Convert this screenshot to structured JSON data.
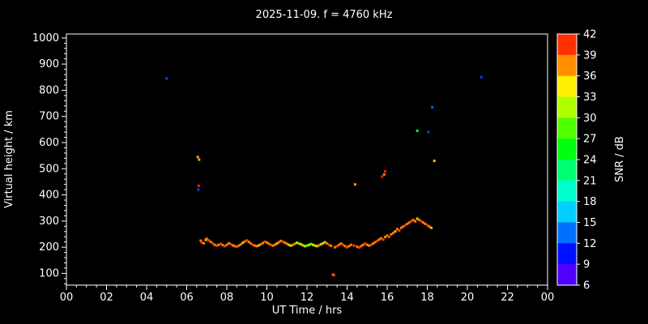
{
  "page": {
    "title": "2025-11-09. f = 4760 kHz"
  },
  "chart_data": {
    "type": "scatter",
    "title": "2025-11-09. f = 4760 kHz",
    "xlabel": "UT Time / hrs",
    "ylabel": "Virtual height / km",
    "colorbar_label": "SNR / dB",
    "xlim": [
      0,
      24
    ],
    "ylim": [
      55,
      1015
    ],
    "x_tick_values": [
      0,
      2,
      4,
      6,
      8,
      10,
      12,
      14,
      16,
      18,
      20,
      22,
      24
    ],
    "x_tick_labels": [
      "00",
      "02",
      "04",
      "06",
      "08",
      "10",
      "12",
      "14",
      "16",
      "18",
      "20",
      "22",
      "00"
    ],
    "x_minor_step": 0.5,
    "y_tick_values": [
      100,
      200,
      300,
      400,
      500,
      600,
      700,
      800,
      900,
      1000
    ],
    "y_minor_step": 20,
    "background_color": "#000000",
    "axis_color": "#ffffff",
    "legend_position": "right-colorbar",
    "grid": false,
    "colorbar": {
      "min": 6,
      "max": 42,
      "ticks": [
        6,
        9,
        12,
        15,
        18,
        21,
        24,
        27,
        30,
        33,
        36,
        39,
        42
      ],
      "segments": 12
    },
    "points_format": [
      "ut_hours",
      "virtual_height_km",
      "snr_db"
    ],
    "points": [
      [
        5.0,
        845,
        12
      ],
      [
        6.55,
        545,
        37
      ],
      [
        6.62,
        535,
        37
      ],
      [
        6.6,
        435,
        41
      ],
      [
        6.58,
        420,
        12
      ],
      [
        6.7,
        225,
        38
      ],
      [
        6.75,
        218,
        40
      ],
      [
        6.85,
        215,
        38
      ],
      [
        6.95,
        228,
        36
      ],
      [
        7.0,
        232,
        38
      ],
      [
        7.1,
        226,
        40
      ],
      [
        7.2,
        220,
        38
      ],
      [
        7.3,
        214,
        40
      ],
      [
        7.4,
        209,
        38
      ],
      [
        7.5,
        206,
        40
      ],
      [
        7.6,
        209,
        38
      ],
      [
        7.7,
        213,
        40
      ],
      [
        7.8,
        208,
        38
      ],
      [
        7.9,
        204,
        40
      ],
      [
        8.0,
        209,
        38
      ],
      [
        8.1,
        215,
        38
      ],
      [
        8.2,
        212,
        40
      ],
      [
        8.3,
        207,
        38
      ],
      [
        8.4,
        204,
        38
      ],
      [
        8.5,
        202,
        40
      ],
      [
        8.6,
        206,
        38
      ],
      [
        8.7,
        211,
        38
      ],
      [
        8.8,
        217,
        36
      ],
      [
        8.9,
        222,
        38
      ],
      [
        9.0,
        226,
        40
      ],
      [
        9.1,
        220,
        38
      ],
      [
        9.2,
        214,
        38
      ],
      [
        9.3,
        209,
        40
      ],
      [
        9.4,
        206,
        38
      ],
      [
        9.5,
        204,
        38
      ],
      [
        9.6,
        207,
        36
      ],
      [
        9.7,
        211,
        38
      ],
      [
        9.8,
        216,
        38
      ],
      [
        9.9,
        221,
        40
      ],
      [
        10.0,
        218,
        38
      ],
      [
        10.1,
        213,
        38
      ],
      [
        10.2,
        209,
        40
      ],
      [
        10.3,
        206,
        38
      ],
      [
        10.4,
        209,
        38
      ],
      [
        10.5,
        214,
        36
      ],
      [
        10.6,
        219,
        38
      ],
      [
        10.7,
        224,
        38
      ],
      [
        10.8,
        221,
        40
      ],
      [
        10.9,
        217,
        38
      ],
      [
        11.0,
        213,
        38
      ],
      [
        11.1,
        209,
        36
      ],
      [
        11.2,
        206,
        31
      ],
      [
        11.3,
        209,
        38
      ],
      [
        11.4,
        213,
        38
      ],
      [
        11.5,
        217,
        31
      ],
      [
        11.6,
        214,
        29
      ],
      [
        11.7,
        211,
        31
      ],
      [
        11.8,
        207,
        36
      ],
      [
        11.9,
        204,
        31
      ],
      [
        12.0,
        206,
        29
      ],
      [
        12.1,
        209,
        31
      ],
      [
        12.2,
        212,
        29
      ],
      [
        12.3,
        209,
        31
      ],
      [
        12.4,
        206,
        36
      ],
      [
        12.5,
        204,
        31
      ],
      [
        12.6,
        207,
        38
      ],
      [
        12.7,
        211,
        36
      ],
      [
        12.8,
        215,
        31
      ],
      [
        12.9,
        219,
        36
      ],
      [
        13.0,
        214,
        38
      ],
      [
        13.1,
        209,
        40
      ],
      [
        13.2,
        205,
        38
      ],
      [
        13.3,
        95,
        38
      ],
      [
        13.35,
        93,
        40
      ],
      [
        13.4,
        200,
        38
      ],
      [
        13.5,
        204,
        40
      ],
      [
        13.6,
        209,
        38
      ],
      [
        13.7,
        214,
        38
      ],
      [
        13.8,
        209,
        40
      ],
      [
        13.9,
        204,
        38
      ],
      [
        14.0,
        200,
        40
      ],
      [
        14.1,
        204,
        38
      ],
      [
        14.2,
        209,
        38
      ],
      [
        14.35,
        206,
        40
      ],
      [
        14.4,
        440,
        37
      ],
      [
        14.5,
        202,
        38
      ],
      [
        14.6,
        199,
        40
      ],
      [
        14.7,
        204,
        38
      ],
      [
        14.8,
        209,
        38
      ],
      [
        14.9,
        214,
        40
      ],
      [
        15.0,
        209,
        38
      ],
      [
        15.1,
        206,
        38
      ],
      [
        15.2,
        209,
        40
      ],
      [
        15.3,
        214,
        38
      ],
      [
        15.4,
        219,
        38
      ],
      [
        15.5,
        224,
        40
      ],
      [
        15.6,
        229,
        38
      ],
      [
        15.7,
        234,
        38
      ],
      [
        15.75,
        470,
        41
      ],
      [
        15.8,
        229,
        40
      ],
      [
        15.85,
        478,
        38
      ],
      [
        15.9,
        490,
        41
      ],
      [
        15.9,
        239,
        38
      ],
      [
        16.0,
        244,
        38
      ],
      [
        16.1,
        239,
        40
      ],
      [
        16.2,
        249,
        38
      ],
      [
        16.3,
        254,
        38
      ],
      [
        16.4,
        260,
        36
      ],
      [
        16.5,
        269,
        38
      ],
      [
        16.6,
        264,
        40
      ],
      [
        16.7,
        274,
        38
      ],
      [
        16.8,
        279,
        38
      ],
      [
        16.9,
        284,
        40
      ],
      [
        17.0,
        289,
        38
      ],
      [
        17.1,
        294,
        38
      ],
      [
        17.2,
        299,
        40
      ],
      [
        17.3,
        304,
        38
      ],
      [
        17.4,
        299,
        38
      ],
      [
        17.5,
        309,
        36
      ],
      [
        17.5,
        645,
        24
      ],
      [
        17.6,
        304,
        38
      ],
      [
        17.7,
        299,
        40
      ],
      [
        17.8,
        294,
        38
      ],
      [
        17.9,
        289,
        38
      ],
      [
        18.0,
        284,
        40
      ],
      [
        18.05,
        640,
        12
      ],
      [
        18.1,
        279,
        38
      ],
      [
        18.2,
        274,
        36
      ],
      [
        18.25,
        735,
        13
      ],
      [
        18.35,
        530,
        36
      ],
      [
        20.7,
        850,
        12
      ]
    ]
  }
}
